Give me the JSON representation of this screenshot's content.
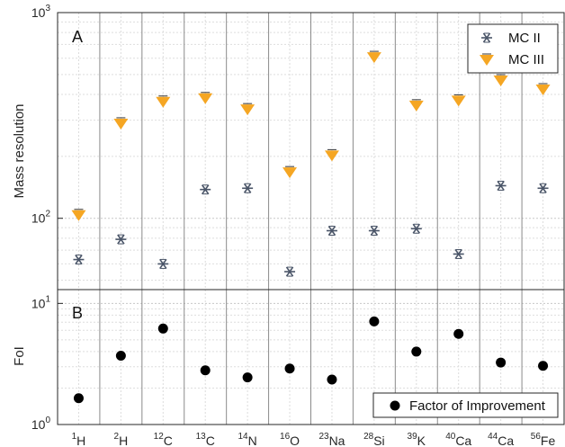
{
  "chart_data": [
    {
      "type": "scatter",
      "panel": "A",
      "ylabel": "Mass resolution",
      "yscale": "log",
      "ylim": [
        45,
        1000
      ],
      "y_ticks": [
        {
          "value": 100,
          "base": "10",
          "exp": "2"
        },
        {
          "value": 1000,
          "base": "10",
          "exp": "3"
        }
      ],
      "grid": true,
      "legend_position": "top-right",
      "categories": [
        {
          "mass": "1",
          "element": "H"
        },
        {
          "mass": "2",
          "element": "H"
        },
        {
          "mass": "12",
          "element": "C"
        },
        {
          "mass": "13",
          "element": "C"
        },
        {
          "mass": "14",
          "element": "N"
        },
        {
          "mass": "16",
          "element": "O"
        },
        {
          "mass": "23",
          "element": "Na"
        },
        {
          "mass": "28",
          "element": "Si"
        },
        {
          "mass": "39",
          "element": "K"
        },
        {
          "mass": "40",
          "element": "Ca"
        },
        {
          "mass": "44",
          "element": "Ca"
        },
        {
          "mass": "56",
          "element": "Fe"
        }
      ],
      "series": [
        {
          "name": "MC II",
          "marker": "asterisk",
          "color": "#4a5568",
          "values": [
            63,
            79,
            60,
            138,
            140,
            55,
            87,
            87,
            89,
            67,
            144,
            140
          ]
        },
        {
          "name": "MC III",
          "marker": "triangle-down",
          "color": "#f5a623",
          "values": [
            104,
            290,
            370,
            385,
            340,
            168,
            203,
            610,
            355,
            375,
            470,
            425
          ]
        }
      ]
    },
    {
      "type": "scatter",
      "panel": "B",
      "ylabel": "FoI",
      "yscale": "log",
      "ylim": [
        1,
        13
      ],
      "y_ticks": [
        {
          "value": 1,
          "base": "10",
          "exp": "0"
        },
        {
          "value": 10,
          "base": "10",
          "exp": "1"
        }
      ],
      "grid": true,
      "legend_position": "bottom-right",
      "series": [
        {
          "name": "Factor of Improvement",
          "marker": "circle",
          "color": "#000000",
          "values": [
            1.65,
            3.7,
            6.2,
            2.8,
            2.45,
            2.9,
            2.35,
            7.1,
            4.0,
            5.6,
            3.25,
            3.05
          ]
        }
      ]
    }
  ]
}
